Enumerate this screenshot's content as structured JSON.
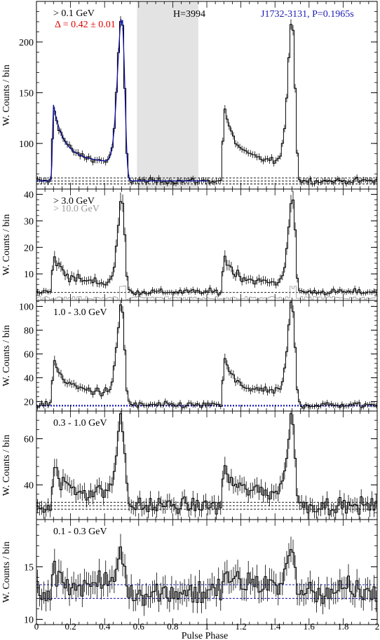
{
  "figure": {
    "xlabel": "Pulse Phase",
    "xlim": [
      0,
      2
    ],
    "x_ticks": [
      "0",
      "0.2",
      "0.4",
      "0.6",
      "0.8",
      "1",
      "1.2",
      "1.4",
      "1.6",
      "1.8",
      "2"
    ],
    "colors": {
      "hist": "#000000",
      "fit": "#1010a0",
      "annot_blue": "#1a1ab4",
      "annot_red": "#e00000",
      "offpulse": "#e3e3e3",
      "gray_hist": "#999999"
    }
  },
  "chart_data": [
    {
      "type": "line",
      "ylabel": "W. Counts / bin",
      "ylim": [
        55,
        240
      ],
      "y_ticks": [
        100,
        150,
        200
      ],
      "labels": {
        "energy": "> 0.1 GeV",
        "delta": "Δ = 0.42 ± 0.01",
        "h": "H=3994",
        "psr": "J1732-3131, P=0.1965s"
      },
      "offpulse_phase": [
        0.59,
        0.95
      ],
      "background_lines": [
        60,
        63,
        66
      ],
      "profile_model": {
        "base": 63,
        "p1_phase": 0.1,
        "p1_height": 75,
        "p2_phase": 0.505,
        "p2_height": 150,
        "bridge_level": 14
      },
      "fit_overlay": true
    },
    {
      "type": "line",
      "ylabel": "W. Counts / bin",
      "ylim": [
        0,
        42
      ],
      "y_ticks": [
        10,
        20,
        30,
        40
      ],
      "labels": {
        "energy": "> 3.0 GeV",
        "energy2": "> 10.0 GeV"
      },
      "background_lines": [
        3
      ],
      "profile_model": {
        "base": 3.2,
        "p1_phase": 0.1,
        "p1_height": 14,
        "p2_phase": 0.505,
        "p2_height": 33,
        "bridge_level": 2
      }
    },
    {
      "type": "line",
      "ylabel": "W. Counts / bin",
      "ylim": [
        12,
        105
      ],
      "y_ticks": [
        20,
        40,
        60,
        80,
        100
      ],
      "labels": {
        "energy": "1.0 - 3.0 GeV"
      },
      "background_lines": [
        16.5
      ],
      "profile_model": {
        "base": 17,
        "p1_phase": 0.1,
        "p1_height": 40,
        "p2_phase": 0.505,
        "p2_height": 78,
        "bridge_level": 10
      }
    },
    {
      "type": "line",
      "ylabel": "W. Counts / bin",
      "ylim": [
        25,
        72
      ],
      "y_ticks": [
        40,
        60
      ],
      "labels": {
        "energy": "0.3 - 1.0 GeV"
      },
      "background_lines": [
        29.5,
        31,
        32.5
      ],
      "profile_model": {
        "base": 31,
        "p1_phase": 0.1,
        "p1_height": 17,
        "p2_phase": 0.505,
        "p2_height": 35,
        "bridge_level": 8
      }
    },
    {
      "type": "line",
      "ylabel": "W. Counts / bin",
      "ylim": [
        9.5,
        19.5
      ],
      "y_ticks": [
        10,
        15
      ],
      "labels": {
        "energy": "0.1 - 0.3 GeV"
      },
      "background_lines": [
        12,
        13.3
      ],
      "profile_model": {
        "base": 12.6,
        "p1_phase": 0.1,
        "p1_height": 1.8,
        "p2_phase": 0.505,
        "p2_height": 3.2,
        "bridge_level": 1.2
      }
    }
  ]
}
